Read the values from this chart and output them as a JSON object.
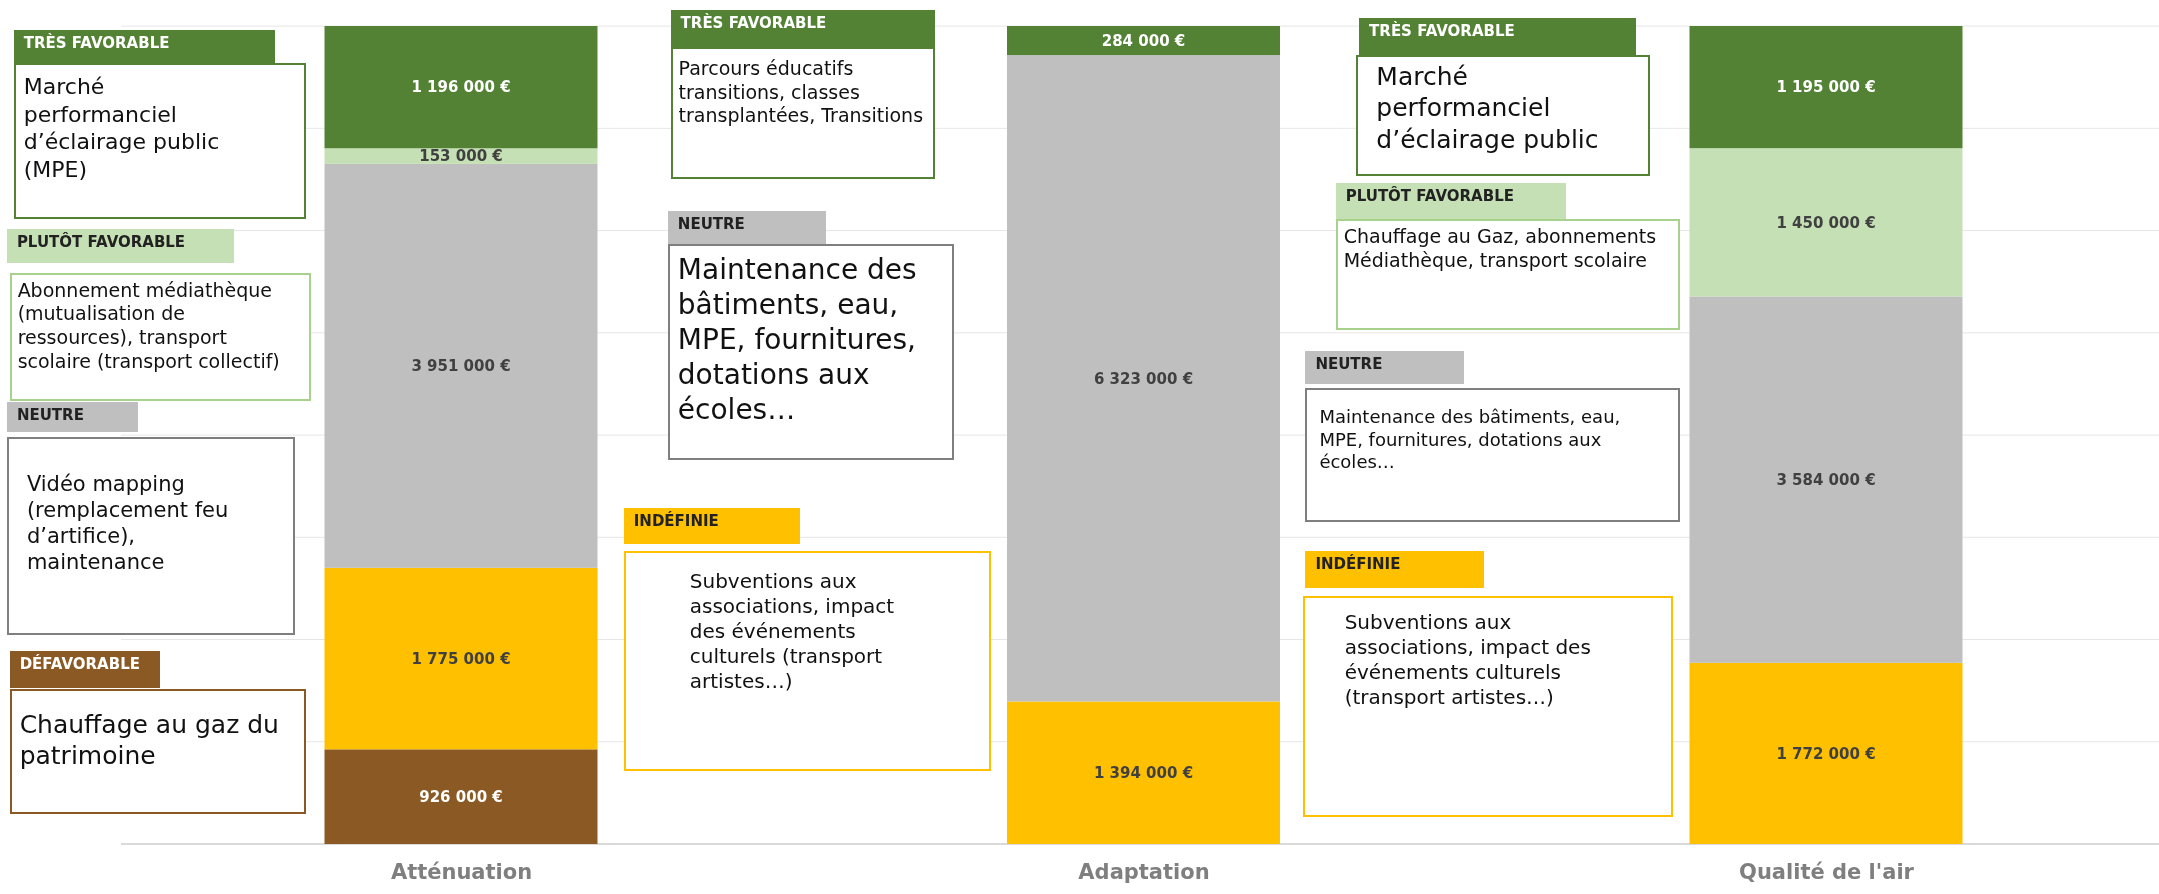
{
  "chart_data": {
    "type": "bar",
    "stacked": true,
    "categories": [
      "Atténuation",
      "Adaptation",
      "Qualité de l'air"
    ],
    "series": [
      {
        "name": "DÉFAVORABLE",
        "color": "#8b5a24",
        "values": [
          926000,
          null,
          null
        ],
        "value_labels": [
          "926 000 €",
          null,
          null
        ]
      },
      {
        "name": "INDÉFINIE",
        "color": "#ffc000",
        "values": [
          1775000,
          1394000,
          1772000
        ],
        "value_labels": [
          "1 775 000 €",
          "1 394 000 €",
          "1 772 000 €"
        ]
      },
      {
        "name": "NEUTRE",
        "color": "#bfbfbf",
        "values": [
          3951000,
          6323000,
          3584000
        ],
        "value_labels": [
          "3 951 000 €",
          "6 323 000 €",
          "3 584 000 €"
        ]
      },
      {
        "name": "PLUTÔT FAVORABLE",
        "color": "#c5e0b4",
        "values": [
          153000,
          null,
          1450000
        ],
        "value_labels": [
          "153 000 €",
          null,
          "1 450 000 €"
        ]
      },
      {
        "name": "TRÈS FAVORABLE",
        "color": "#548235",
        "values": [
          1196000,
          284000,
          1195000
        ],
        "value_labels": [
          "1 196 000 €",
          "284 000 €",
          "1 195 000 €"
        ]
      }
    ],
    "ylim": [
      0,
      8001000
    ],
    "yticks": [
      {
        "value": 0,
        "label": null
      },
      {
        "value": 1000000,
        "label": null
      },
      {
        "value": 2000000,
        "label": null
      },
      {
        "value": 3000000,
        "label": null
      },
      {
        "value": 4000000,
        "label": null
      },
      {
        "value": 5000000,
        "label": null
      },
      {
        "value": 6000000,
        "label": null
      },
      {
        "value": 7000000,
        "label": null
      },
      {
        "value": 8000000,
        "label": null
      }
    ],
    "grid": "y",
    "legend": false,
    "annotations": [
      "Marché performanciel d’éclairage public (MPE)",
      "Abonnement médiathèque (mutualisation de ressources), transport scolaire (transport collectif)",
      "Vidéo mapping (remplacement feu d’artifice), maintenance",
      "Chauffage au gaz du patrimoine",
      "Parcours éducatifs transitions, classes transplantées, Transitions",
      "Maintenance des bâtiments, eau, MPE, fournitures, dotations aux écoles…",
      "Subventions aux associations, impact des événements culturels (transport artistes…)",
      "Marché performanciel d’éclairage public",
      "Chauffage au Gaz, abonnements Médiathèque, transport scolaire",
      "Maintenance des bâtiments, eau, MPE, fournitures, dotations aux écoles…",
      "Subventions aux associations, impact des événements culturels (transport artistes…)"
    ]
  }
}
